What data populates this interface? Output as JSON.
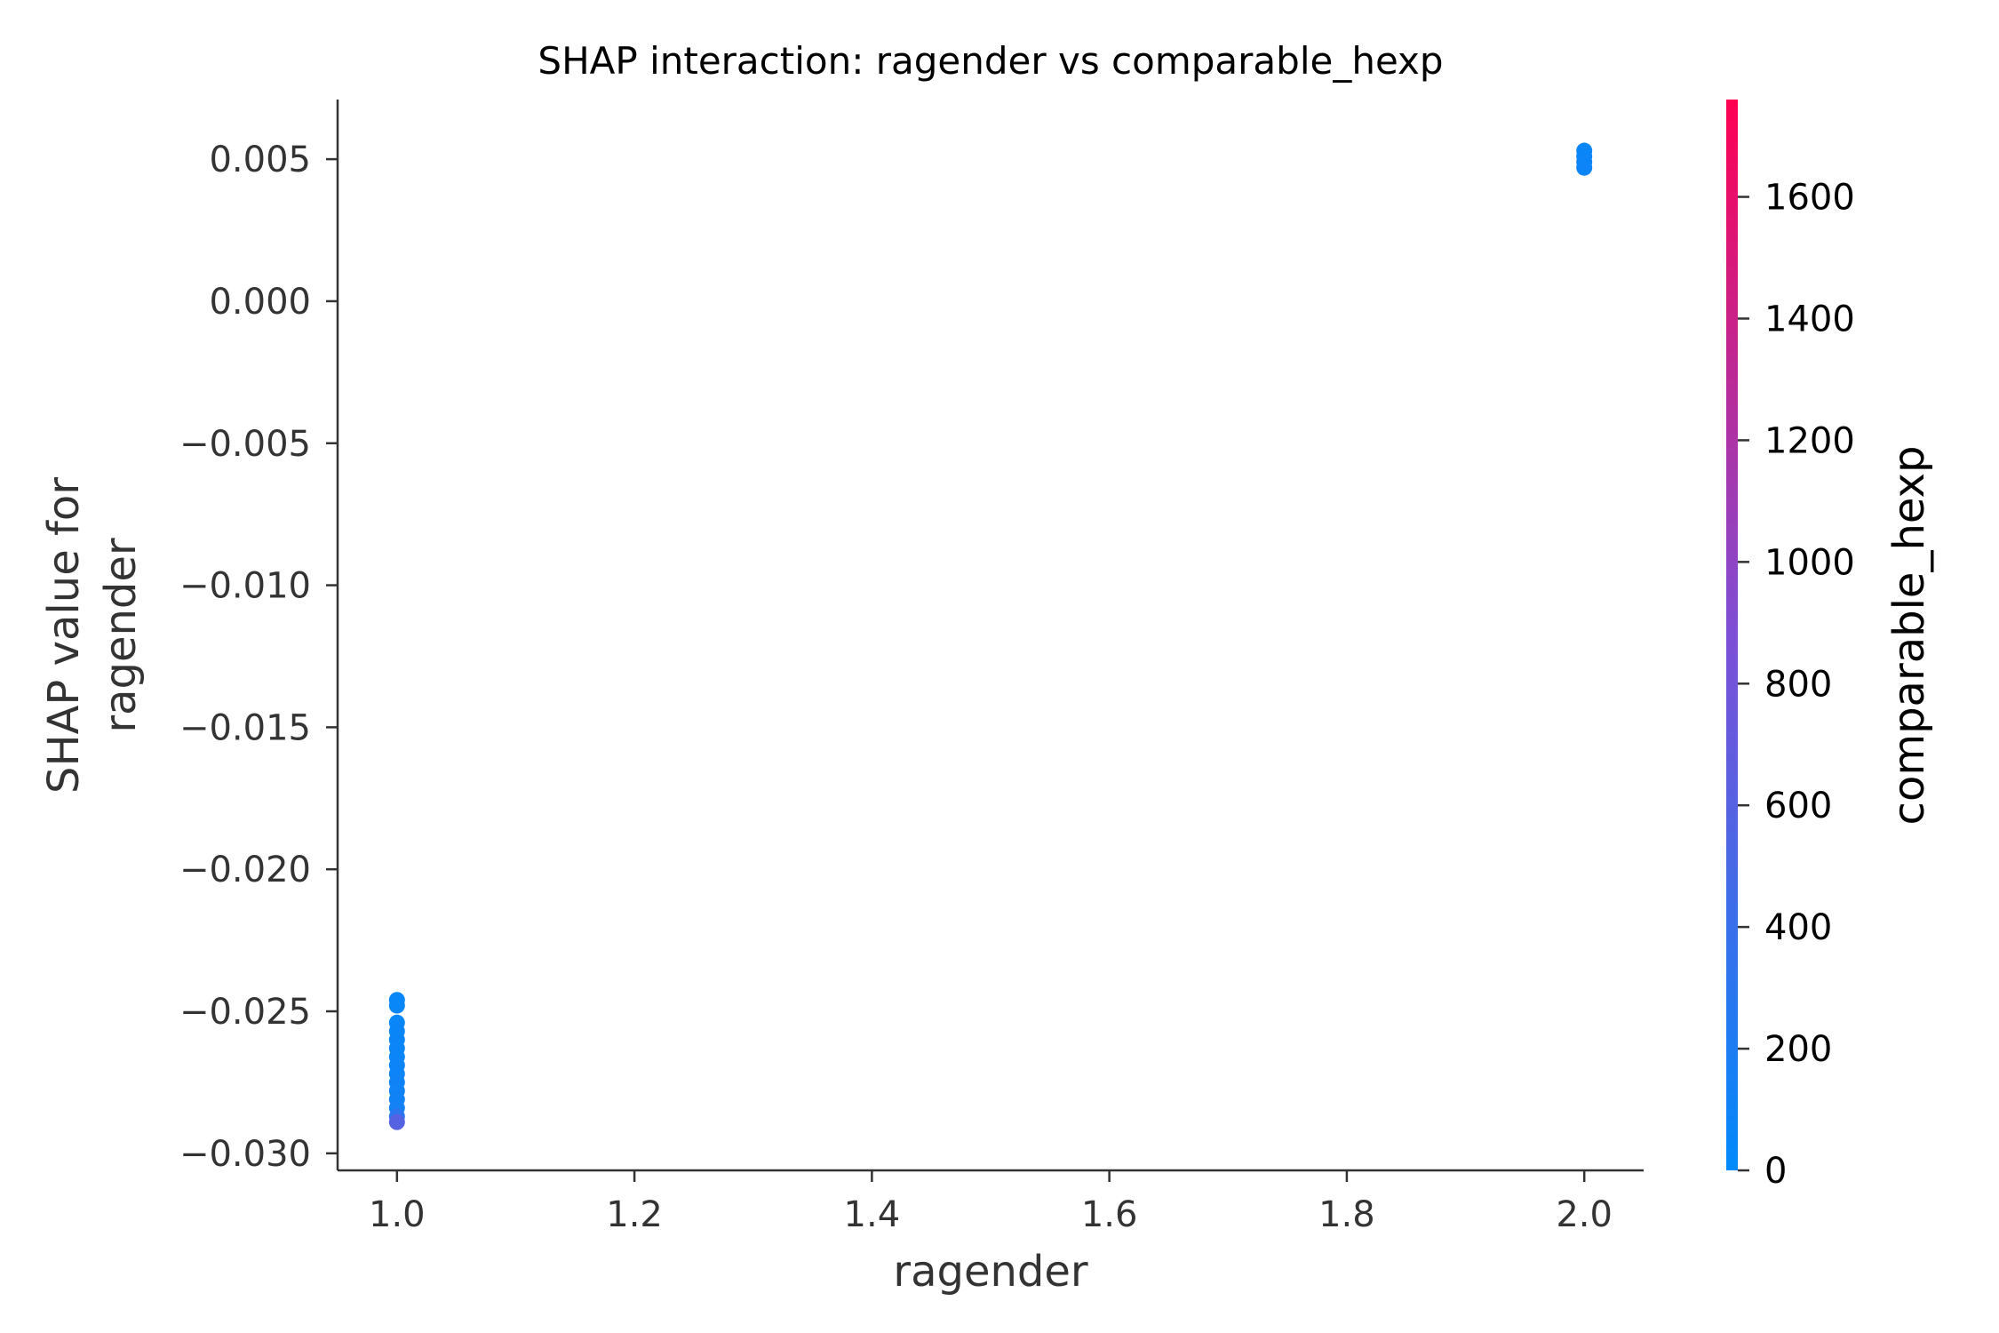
{
  "chart_data": {
    "type": "scatter",
    "title": "SHAP interaction: ragender vs comparable_hexp",
    "xlabel": "ragender",
    "ylabel_lines": [
      "SHAP value for",
      "ragender"
    ],
    "xlim": [
      0.95,
      2.05
    ],
    "ylim": [
      -0.0306,
      0.0071
    ],
    "xticks": [
      1.0,
      1.2,
      1.4,
      1.6,
      1.8,
      2.0
    ],
    "xtick_labels": [
      "1.0",
      "1.2",
      "1.4",
      "1.6",
      "1.8",
      "2.0"
    ],
    "yticks": [
      0.005,
      0.0,
      -0.005,
      -0.01,
      -0.015,
      -0.02,
      -0.025,
      -0.03
    ],
    "ytick_labels": [
      "0.005",
      "0.000",
      "−0.005",
      "−0.010",
      "−0.015",
      "−0.020",
      "−0.025",
      "−0.030"
    ],
    "grid": false,
    "colorbar": {
      "label": "comparable_hexp",
      "range": [
        0,
        1760
      ],
      "ticks": [
        0,
        200,
        400,
        600,
        800,
        1000,
        1200,
        1400,
        1600
      ],
      "tick_labels": [
        "0",
        "200",
        "400",
        "600",
        "800",
        "1000",
        "1200",
        "1400",
        "1600"
      ],
      "colors": [
        "#008afb",
        "#7d4fd6",
        "#ff0052"
      ]
    },
    "points": [
      {
        "x": 2.0,
        "y": 0.0053,
        "c": 60
      },
      {
        "x": 2.0,
        "y": 0.0051,
        "c": 70
      },
      {
        "x": 2.0,
        "y": 0.0049,
        "c": 80
      },
      {
        "x": 2.0,
        "y": 0.0047,
        "c": 90
      },
      {
        "x": 1.0,
        "y": -0.0246,
        "c": 50
      },
      {
        "x": 1.0,
        "y": -0.0248,
        "c": 60
      },
      {
        "x": 1.0,
        "y": -0.0254,
        "c": 60
      },
      {
        "x": 1.0,
        "y": -0.0257,
        "c": 70
      },
      {
        "x": 1.0,
        "y": -0.026,
        "c": 70
      },
      {
        "x": 1.0,
        "y": -0.0263,
        "c": 80
      },
      {
        "x": 1.0,
        "y": -0.0266,
        "c": 80
      },
      {
        "x": 1.0,
        "y": -0.0269,
        "c": 90
      },
      {
        "x": 1.0,
        "y": -0.0272,
        "c": 90
      },
      {
        "x": 1.0,
        "y": -0.0275,
        "c": 100
      },
      {
        "x": 1.0,
        "y": -0.0278,
        "c": 110
      },
      {
        "x": 1.0,
        "y": -0.0281,
        "c": 120
      },
      {
        "x": 1.0,
        "y": -0.0284,
        "c": 140
      },
      {
        "x": 1.0,
        "y": -0.0287,
        "c": 300
      },
      {
        "x": 1.0,
        "y": -0.0289,
        "c": 600
      }
    ]
  }
}
